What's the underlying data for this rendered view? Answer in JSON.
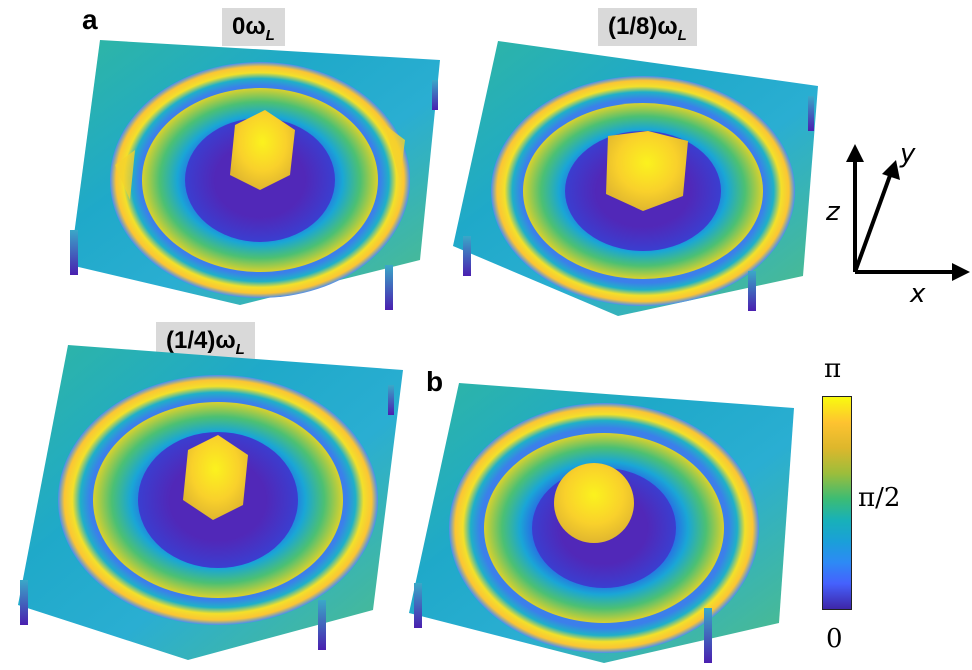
{
  "figure": {
    "panel_a_label": "a",
    "panel_b_label": "b",
    "panels": [
      {
        "title_main": "0ω",
        "title_sub": "L"
      },
      {
        "title_main": "(1/8)ω",
        "title_sub": "L"
      },
      {
        "title_main": "(1/4)ω",
        "title_sub": "L"
      }
    ],
    "axes": {
      "x": "x",
      "y": "y",
      "z": "z"
    },
    "colorbar": {
      "top_label": "π",
      "mid_label": "π/2",
      "bottom_label": "0"
    },
    "colors": {
      "yellow": "#f9fb0e",
      "cyan": "#1aa8c8",
      "blue": "#3e26a8",
      "teal": "#28b89a",
      "title_bg": "#d9d9d9"
    }
  }
}
